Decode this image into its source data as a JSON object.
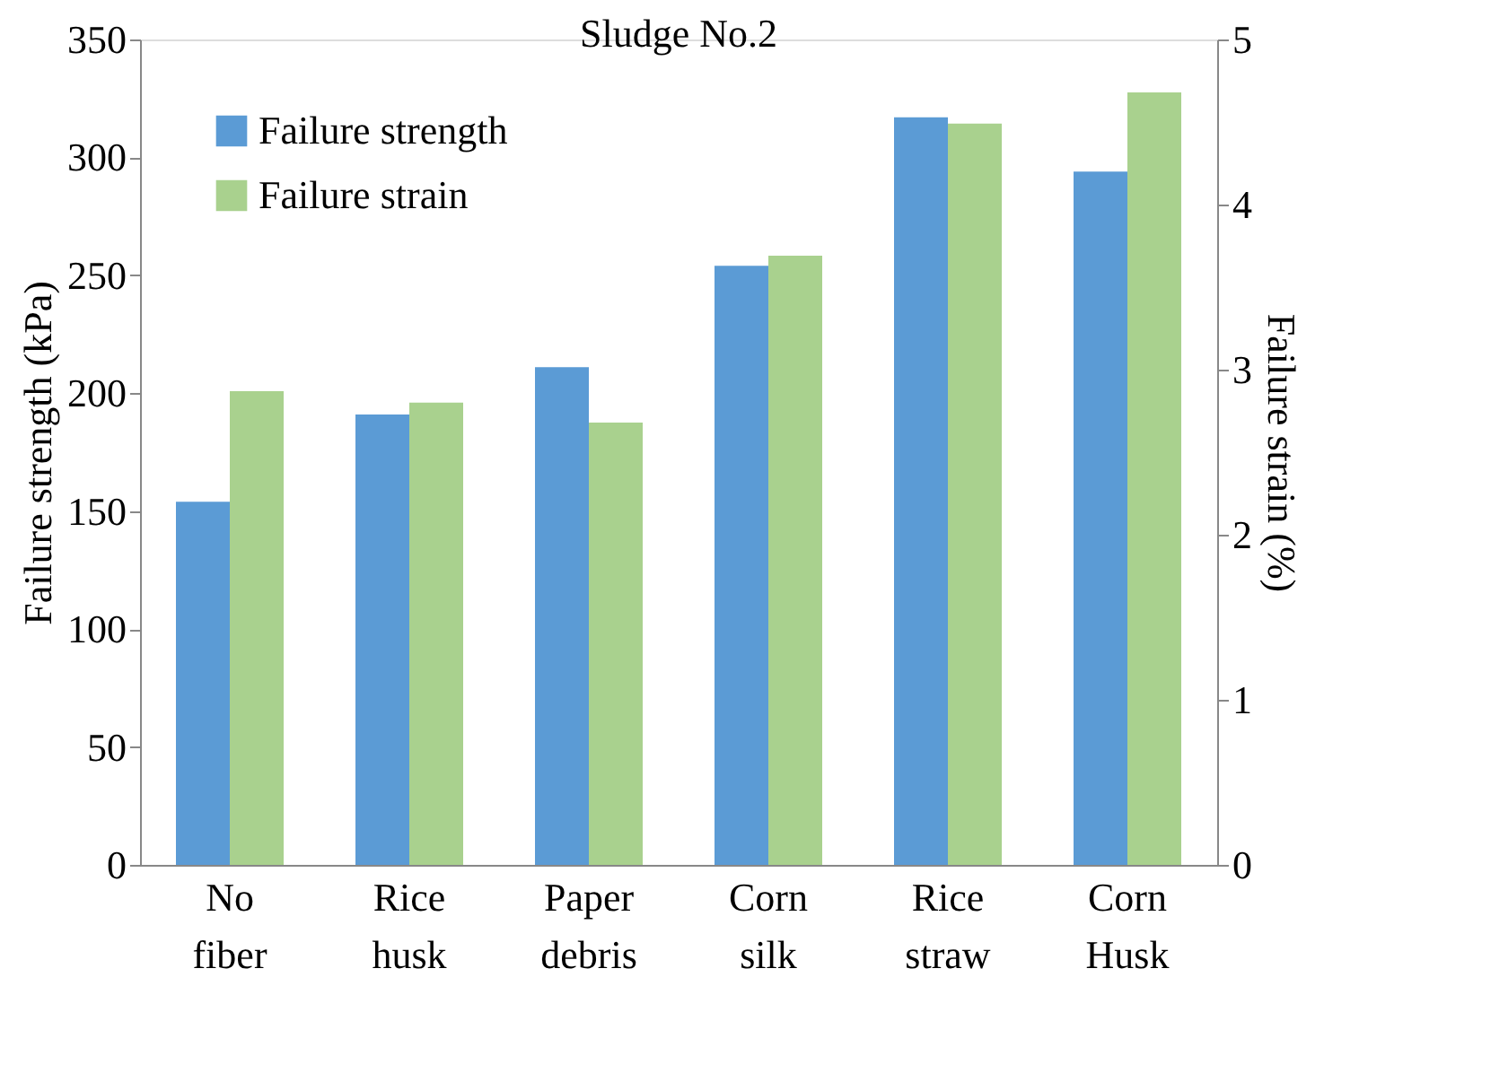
{
  "chart_data": {
    "type": "bar",
    "title": "Sludge No.2",
    "ylabel": "Failure strength (kPa)",
    "y2label": "Failure strain (%)",
    "categories": [
      "No fiber",
      "Rice husk",
      "Paper debris",
      "Corn silk",
      "Rice straw",
      "Corn Husk"
    ],
    "series": [
      {
        "name": "Failure strength",
        "color": "#5b9bd5",
        "values": [
          154,
          191,
          211,
          254,
          317,
          294
        ]
      },
      {
        "name": "Failure strain",
        "color": "#a9d18e",
        "axis": "y2",
        "values": [
          2.87,
          2.8,
          2.68,
          3.69,
          4.49,
          4.68
        ]
      }
    ],
    "ylim": [
      0,
      350
    ],
    "yticks": [
      0,
      50,
      100,
      150,
      200,
      250,
      300,
      350
    ],
    "y2lim": [
      0,
      5
    ],
    "y2ticks": [
      0,
      1,
      2,
      3,
      4,
      5
    ],
    "grid": false,
    "legend": "top left"
  }
}
